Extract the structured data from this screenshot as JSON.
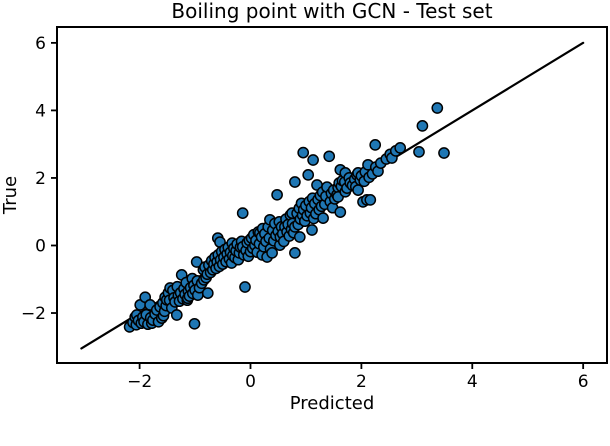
{
  "chart_data": {
    "type": "scatter",
    "title": "Boiling point with GCN - Test set",
    "xlabel": "Predicted",
    "ylabel": "True",
    "xlim": [
      -3.49,
      6.43
    ],
    "ylim": [
      -3.48,
      6.47
    ],
    "grid": false,
    "legend": "none",
    "xticks": {
      "values": [
        -2,
        0,
        2,
        4,
        6
      ],
      "labels": [
        "−2",
        "0",
        "2",
        "4",
        "6"
      ]
    },
    "yticks": {
      "values": [
        -2,
        0,
        2,
        4,
        6
      ],
      "labels": [
        "−2",
        "0",
        "2",
        "4",
        "6"
      ]
    },
    "identity_line": {
      "x1": -3.05,
      "y1": -3.05,
      "x2": 6.0,
      "y2": 6.0,
      "color": "#000000",
      "width": 2.2
    },
    "marker": {
      "fill": "#1f77b4",
      "edge": "#000000",
      "radius": 5.1,
      "edge_width": 1.5
    },
    "axis_color": "#000000",
    "background": "#ffffff",
    "points": [
      [
        -2.18,
        -2.41
      ],
      [
        -2.12,
        -2.28
      ],
      [
        -2.08,
        -2.12
      ],
      [
        -2.06,
        -2.35
      ],
      [
        -2.05,
        -2.06
      ],
      [
        -2.02,
        -2.22
      ],
      [
        -1.99,
        -1.76
      ],
      [
        -1.97,
        -2.3
      ],
      [
        -1.94,
        -2.12
      ],
      [
        -1.92,
        -2.26
      ],
      [
        -1.9,
        -1.53
      ],
      [
        -1.88,
        -2.05
      ],
      [
        -1.85,
        -2.33
      ],
      [
        -1.81,
        -1.76
      ],
      [
        -1.8,
        -2.14
      ],
      [
        -1.78,
        -2.3
      ],
      [
        -1.76,
        -2.21
      ],
      [
        -1.72,
        -2.03
      ],
      [
        -1.69,
        -1.91
      ],
      [
        -1.66,
        -2.26
      ],
      [
        -1.63,
        -1.82
      ],
      [
        -1.6,
        -2.15
      ],
      [
        -1.58,
        -1.7
      ],
      [
        -1.57,
        -2.08
      ],
      [
        -1.55,
        -1.95
      ],
      [
        -1.54,
        -1.53
      ],
      [
        -1.52,
        -1.78
      ],
      [
        -1.51,
        -1.61
      ],
      [
        -1.48,
        -1.4
      ],
      [
        -1.46,
        -1.62
      ],
      [
        -1.45,
        -1.26
      ],
      [
        -1.42,
        -1.85
      ],
      [
        -1.4,
        -1.33
      ],
      [
        -1.38,
        -1.55
      ],
      [
        -1.36,
        -1.67
      ],
      [
        -1.33,
        -2.06
      ],
      [
        -1.32,
        -1.22
      ],
      [
        -1.3,
        -1.48
      ],
      [
        -1.28,
        -1.65
      ],
      [
        -1.26,
        -1.4
      ],
      [
        -1.24,
        -0.87
      ],
      [
        -1.22,
        -1.58
      ],
      [
        -1.2,
        -1.28
      ],
      [
        -1.18,
        -1.45
      ],
      [
        -1.16,
        -1.1
      ],
      [
        -1.14,
        -1.62
      ],
      [
        -1.13,
        -1.56
      ],
      [
        -1.12,
        -1.35
      ],
      [
        -1.1,
        -1.5
      ],
      [
        -1.08,
        -1.25
      ],
      [
        -1.05,
        -0.98
      ],
      [
        -1.04,
        -1.42
      ],
      [
        -1.02,
        -1.18
      ],
      [
        -1.01,
        -2.32
      ],
      [
        -1.0,
        -1.32
      ],
      [
        -0.97,
        -0.49
      ],
      [
        -0.96,
        -1.05
      ],
      [
        -0.95,
        -1.47
      ],
      [
        -0.92,
        -1.25
      ],
      [
        -0.88,
        -1.12
      ],
      [
        -0.85,
        -0.72
      ],
      [
        -0.84,
        -1.02
      ],
      [
        -0.82,
        -0.64
      ],
      [
        -0.8,
        -0.95
      ],
      [
        -0.78,
        -0.85
      ],
      [
        -0.77,
        -1.41
      ],
      [
        -0.75,
        -0.58
      ],
      [
        -0.72,
        -0.8
      ],
      [
        -0.7,
        -0.45
      ],
      [
        -0.68,
        -0.72
      ],
      [
        -0.66,
        -0.55
      ],
      [
        -0.64,
        -0.35
      ],
      [
        -0.62,
        -0.68
      ],
      [
        -0.6,
        -0.48
      ],
      [
        -0.59,
        0.22
      ],
      [
        -0.58,
        -0.28
      ],
      [
        -0.56,
        -0.62
      ],
      [
        -0.55,
        0.1
      ],
      [
        -0.54,
        -0.42
      ],
      [
        -0.52,
        -0.18
      ],
      [
        -0.5,
        -0.55
      ],
      [
        -0.48,
        -0.35
      ],
      [
        -0.46,
        -0.12
      ],
      [
        -0.44,
        -0.48
      ],
      [
        -0.42,
        -0.25
      ],
      [
        -0.4,
        -0.06
      ],
      [
        -0.38,
        -0.4
      ],
      [
        -0.36,
        -0.2
      ],
      [
        -0.34,
        -0.52
      ],
      [
        -0.33,
        0.07
      ],
      [
        -0.32,
        -0.3
      ],
      [
        -0.3,
        -0.08
      ],
      [
        -0.28,
        -0.36
      ],
      [
        -0.26,
        -0.16
      ],
      [
        -0.24,
        0.04
      ],
      [
        -0.22,
        -0.42
      ],
      [
        -0.2,
        -0.22
      ],
      [
        -0.18,
        -0.05
      ],
      [
        -0.16,
        0.12
      ],
      [
        -0.14,
        -0.04
      ],
      [
        -0.14,
        0.96
      ],
      [
        -0.12,
        -0.28
      ],
      [
        -0.1,
        -1.23
      ],
      [
        -0.08,
        -0.15
      ],
      [
        -0.06,
        0.08
      ],
      [
        -0.04,
        -0.32
      ],
      [
        -0.02,
        0.15
      ],
      [
        0.0,
        -0.18
      ],
      [
        0.02,
        0.22
      ],
      [
        0.04,
        -0.08
      ],
      [
        0.06,
        0.32
      ],
      [
        0.08,
        0.01
      ],
      [
        0.1,
        0.15
      ],
      [
        0.12,
        -0.2
      ],
      [
        0.14,
        0.4
      ],
      [
        0.16,
        0.05
      ],
      [
        0.17,
        0.37
      ],
      [
        0.2,
        0.25
      ],
      [
        0.21,
        -0.28
      ],
      [
        0.22,
        0.5
      ],
      [
        0.24,
        -0.04
      ],
      [
        0.26,
        0.35
      ],
      [
        0.28,
        0.12
      ],
      [
        0.3,
        -0.34
      ],
      [
        0.32,
        0.55
      ],
      [
        0.34,
        0.22
      ],
      [
        0.35,
        0.76
      ],
      [
        0.36,
        -0.1
      ],
      [
        0.39,
        -0.22
      ],
      [
        0.4,
        0.45
      ],
      [
        0.42,
        0.14
      ],
      [
        0.44,
        0.65
      ],
      [
        0.46,
        0.3
      ],
      [
        0.48,
        1.5
      ],
      [
        0.5,
        0.42
      ],
      [
        0.52,
        0.7
      ],
      [
        0.53,
        0.01
      ],
      [
        0.54,
        0.25
      ],
      [
        0.56,
        0.55
      ],
      [
        0.58,
        0.35
      ],
      [
        0.6,
        0.12
      ],
      [
        0.62,
        0.55
      ],
      [
        0.64,
        0.78
      ],
      [
        0.66,
        0.4
      ],
      [
        0.68,
        0.62
      ],
      [
        0.7,
        0.28
      ],
      [
        0.72,
        0.9
      ],
      [
        0.74,
        0.48
      ],
      [
        0.75,
        0.96
      ],
      [
        0.76,
        0.65
      ],
      [
        0.78,
        0.38
      ],
      [
        0.8,
        0.55
      ],
      [
        0.8,
        -0.22
      ],
      [
        0.8,
        1.88
      ],
      [
        0.84,
        0.95
      ],
      [
        0.86,
        0.62
      ],
      [
        0.88,
        1.1
      ],
      [
        0.89,
        0.25
      ],
      [
        0.9,
        0.78
      ],
      [
        0.92,
        1.25
      ],
      [
        0.95,
        2.75
      ],
      [
        0.94,
        0.9
      ],
      [
        0.96,
        1.06
      ],
      [
        0.98,
        0.72
      ],
      [
        1.0,
        1.18
      ],
      [
        1.02,
        0.88
      ],
      [
        1.04,
        2.09
      ],
      [
        1.06,
        1.3
      ],
      [
        1.08,
        0.96
      ],
      [
        1.1,
        1.12
      ],
      [
        1.11,
        0.46
      ],
      [
        1.12,
        1.4
      ],
      [
        1.13,
        2.53
      ],
      [
        1.14,
        0.8
      ],
      [
        1.16,
        1.24
      ],
      [
        1.18,
        0.94
      ],
      [
        1.2,
        1.79
      ],
      [
        1.22,
        1.36
      ],
      [
        1.24,
        1.06
      ],
      [
        1.26,
        1.48
      ],
      [
        1.28,
        1.16
      ],
      [
        1.3,
        1.58
      ],
      [
        1.31,
        0.81
      ],
      [
        1.34,
        1.22
      ],
      [
        1.36,
        1.46
      ],
      [
        1.38,
        1.73
      ],
      [
        1.42,
        2.64
      ],
      [
        1.44,
        1.3
      ],
      [
        1.46,
        1.54
      ],
      [
        1.48,
        1.12
      ],
      [
        1.5,
        1.64
      ],
      [
        1.52,
        1.38
      ],
      [
        1.56,
        1.5
      ],
      [
        1.58,
        1.72
      ],
      [
        1.58,
        1.44
      ],
      [
        1.6,
        1.85
      ],
      [
        1.62,
        2.24
      ],
      [
        1.62,
        0.99
      ],
      [
        1.64,
        1.75
      ],
      [
        1.66,
        1.92
      ],
      [
        1.7,
        1.88
      ],
      [
        1.71,
        1.59
      ],
      [
        1.71,
        2.15
      ],
      [
        1.74,
        1.7
      ],
      [
        1.78,
        2.0
      ],
      [
        1.8,
        1.85
      ],
      [
        1.84,
        1.78
      ],
      [
        1.88,
        1.96
      ],
      [
        1.9,
        1.74
      ],
      [
        1.92,
        2.09
      ],
      [
        1.94,
        1.64
      ],
      [
        1.94,
        2.15
      ],
      [
        1.98,
        1.94
      ],
      [
        2.0,
        2.06
      ],
      [
        2.03,
        1.29
      ],
      [
        2.05,
        1.9
      ],
      [
        2.07,
        2.18
      ],
      [
        2.1,
        1.35
      ],
      [
        2.12,
        2.39
      ],
      [
        2.14,
        2.02
      ],
      [
        2.16,
        1.35
      ],
      [
        2.2,
        2.12
      ],
      [
        2.26,
        2.32
      ],
      [
        2.3,
        2.2
      ],
      [
        2.35,
        2.44
      ],
      [
        2.25,
        2.98
      ],
      [
        2.45,
        2.56
      ],
      [
        2.52,
        2.7
      ],
      [
        2.55,
        2.59
      ],
      [
        2.62,
        2.8
      ],
      [
        2.7,
        2.89
      ],
      [
        3.04,
        2.77
      ],
      [
        3.1,
        3.54
      ],
      [
        3.37,
        4.07
      ],
      [
        3.49,
        2.74
      ]
    ]
  }
}
